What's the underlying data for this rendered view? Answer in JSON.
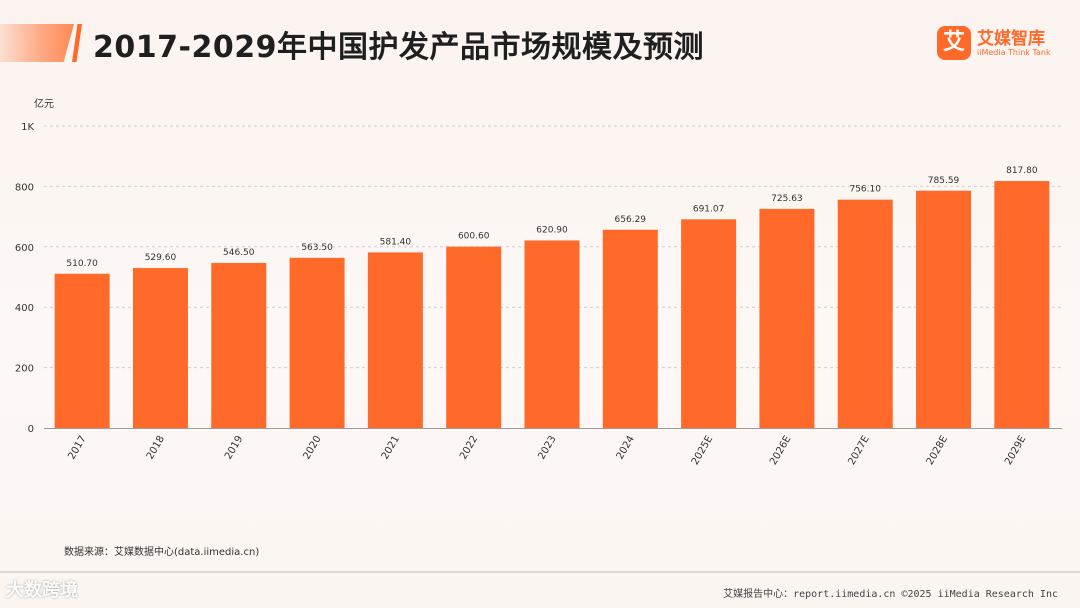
{
  "header": {
    "title": "2017-2029年中国护发产品市场规模及预测",
    "logo_mark": "艾",
    "logo_name": "艾媒智库",
    "logo_sub": "iiMedia Think Tank"
  },
  "colors": {
    "accent": "#ff6a2a",
    "bar": "#ff6a2a",
    "grid": "#cfcfcf"
  },
  "chart_data": {
    "type": "bar",
    "title": "2017-2029年中国护发产品市场规模及预测",
    "ylabel": "亿元",
    "xlabel": "",
    "ylim": [
      0,
      1000
    ],
    "y_ticks": [
      0,
      200,
      400,
      600,
      800,
      1000
    ],
    "y_tick_labels": [
      "0",
      "200",
      "400",
      "600",
      "800",
      "1K"
    ],
    "grid": "horizontal dashed",
    "categories": [
      "2017",
      "2018",
      "2019",
      "2020",
      "2021",
      "2022",
      "2023",
      "2024",
      "2025E",
      "2026E",
      "2027E",
      "2028E",
      "2029E"
    ],
    "values": [
      510.7,
      529.6,
      546.5,
      563.5,
      581.4,
      600.6,
      620.9,
      656.29,
      691.07,
      725.63,
      756.1,
      785.59,
      817.8
    ],
    "value_labels": [
      "510.70",
      "529.60",
      "546.50",
      "563.50",
      "581.40",
      "600.60",
      "620.90",
      "656.29",
      "691.07",
      "725.63",
      "756.10",
      "785.59",
      "817.80"
    ]
  },
  "footer": {
    "source": "数据来源：艾媒数据中心(data.iimedia.cn)",
    "report_center": "艾媒报告中心：report.iimedia.cn  ©2025 iiMedia Research Inc",
    "watermark": "大数跨境"
  }
}
